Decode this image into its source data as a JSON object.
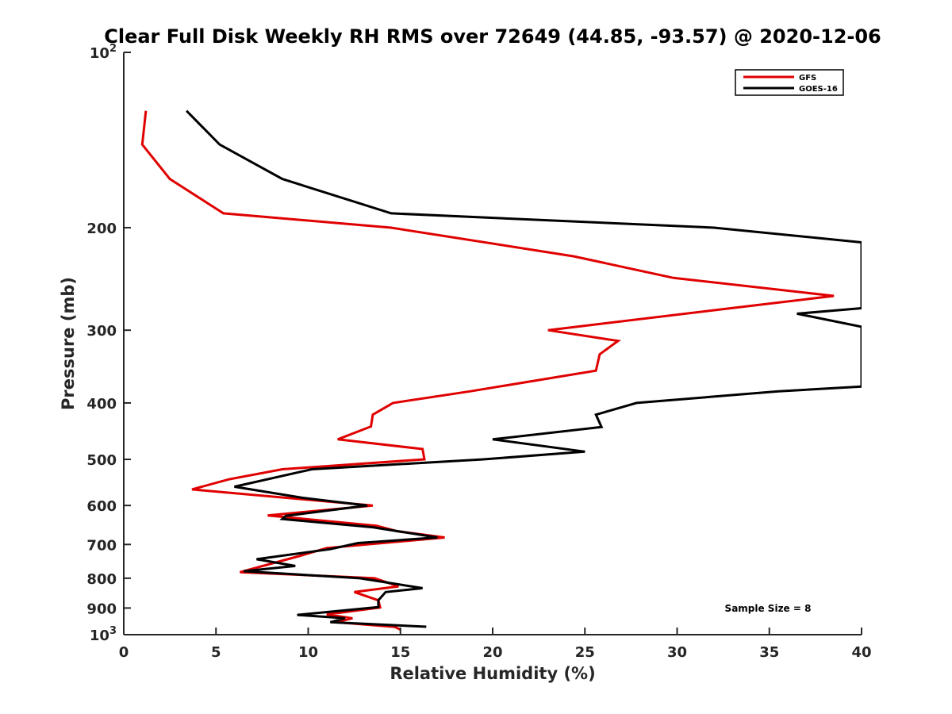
{
  "chart_data": {
    "type": "line",
    "title": "Clear Full Disk Weekly RH RMS over 72649 (44.85, -93.57) @ 2020-12-06",
    "xlabel": "Relative Humidity (%)",
    "ylabel": "Pressure (mb)",
    "xlim": [
      0,
      40
    ],
    "ylim": [
      100,
      1000
    ],
    "y_scale": "log",
    "y_reversed": true,
    "grid": false,
    "legend_position": "top-right",
    "x_ticks": [
      0,
      5,
      10,
      15,
      20,
      25,
      30,
      35,
      40
    ],
    "x_tick_labels": [
      "0",
      "5",
      "10",
      "15",
      "20",
      "25",
      "30",
      "35",
      "40"
    ],
    "y_ticks": [
      100,
      200,
      300,
      400,
      500,
      600,
      700,
      800,
      900,
      1000
    ],
    "y_tick_labels": [
      {
        "base": "10",
        "exp": "2"
      },
      {
        "base": "200",
        "exp": ""
      },
      {
        "base": "300",
        "exp": ""
      },
      {
        "base": "400",
        "exp": ""
      },
      {
        "base": "500",
        "exp": ""
      },
      {
        "base": "600",
        "exp": ""
      },
      {
        "base": "700",
        "exp": ""
      },
      {
        "base": "800",
        "exp": ""
      },
      {
        "base": "900",
        "exp": ""
      },
      {
        "base": "10",
        "exp": "3"
      }
    ],
    "annotation": "Sample Size = 8",
    "series": [
      {
        "name": "GFS",
        "color": "#e00000",
        "points": [
          [
            1.2,
            126
          ],
          [
            1.0,
            144
          ],
          [
            2.5,
            165
          ],
          [
            5.4,
            189
          ],
          [
            14.5,
            200
          ],
          [
            24.4,
            224
          ],
          [
            29.8,
            244
          ],
          [
            38.5,
            262
          ],
          [
            31.7,
            278
          ],
          [
            23.0,
            300
          ],
          [
            26.8,
            313
          ],
          [
            25.8,
            330
          ],
          [
            25.6,
            352
          ],
          [
            18.8,
            382
          ],
          [
            14.6,
            400
          ],
          [
            13.5,
            419
          ],
          [
            13.4,
            439
          ],
          [
            11.6,
            462
          ],
          [
            16.2,
            480
          ],
          [
            16.3,
            500
          ],
          [
            8.6,
            520
          ],
          [
            5.7,
            541
          ],
          [
            3.7,
            563
          ],
          [
            13.5,
            600
          ],
          [
            7.8,
            624
          ],
          [
            13.7,
            650
          ],
          [
            14.8,
            664
          ],
          [
            17.4,
            681
          ],
          [
            11.0,
            710
          ],
          [
            9.5,
            733
          ],
          [
            6.3,
            781
          ],
          [
            13.6,
            800
          ],
          [
            14.9,
            826
          ],
          [
            12.5,
            845
          ],
          [
            13.8,
            873
          ],
          [
            13.9,
            898
          ],
          [
            11.0,
            923
          ],
          [
            12.4,
            937
          ],
          [
            11.5,
            952
          ],
          [
            14.7,
            970
          ],
          [
            15.0,
            980
          ]
        ]
      },
      {
        "name": "GOES-16",
        "color": "#000000",
        "points": [
          [
            3.4,
            126
          ],
          [
            5.2,
            144
          ],
          [
            8.6,
            165
          ],
          [
            14.5,
            189
          ],
          [
            32.0,
            200
          ],
          [
            40.0,
            212
          ],
          [
            40.0,
            275
          ],
          [
            36.5,
            281
          ],
          [
            40.0,
            296
          ],
          [
            40.0,
            375
          ],
          [
            35.5,
            382
          ],
          [
            27.8,
            400
          ],
          [
            25.6,
            419
          ],
          [
            25.9,
            440
          ],
          [
            20.0,
            462
          ],
          [
            25.0,
            485
          ],
          [
            19.5,
            500
          ],
          [
            10.2,
            520
          ],
          [
            6.0,
            557
          ],
          [
            9.7,
            582
          ],
          [
            13.2,
            600
          ],
          [
            8.8,
            625
          ],
          [
            8.6,
            633
          ],
          [
            13.5,
            654
          ],
          [
            17.0,
            681
          ],
          [
            12.7,
            696
          ],
          [
            11.2,
            713
          ],
          [
            7.2,
            742
          ],
          [
            9.3,
            762
          ],
          [
            6.5,
            778
          ],
          [
            12.8,
            800
          ],
          [
            16.2,
            832
          ],
          [
            14.2,
            845
          ],
          [
            13.8,
            873
          ],
          [
            13.8,
            897
          ],
          [
            9.4,
            925
          ],
          [
            12.0,
            937
          ],
          [
            11.2,
            952
          ],
          [
            16.4,
            969
          ]
        ]
      }
    ]
  }
}
